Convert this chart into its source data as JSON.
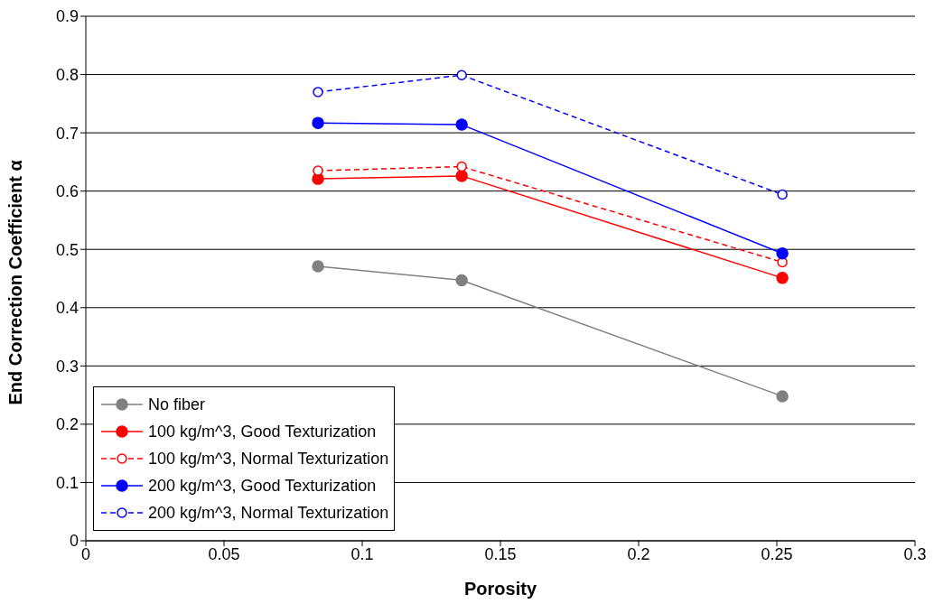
{
  "chart_data": {
    "type": "line",
    "xlabel": "Porosity",
    "ylabel": "End Correction Coefficient α",
    "x": [
      0.084,
      0.136,
      0.252
    ],
    "series": [
      {
        "name": "No fiber",
        "color": "#808080",
        "line_style": "solid",
        "values": [
          0.471,
          0.447,
          0.248
        ]
      },
      {
        "name": "100 kg/m^3, Good Texturization",
        "color": "#ff0000",
        "line_style": "solid",
        "values": [
          0.621,
          0.626,
          0.451
        ]
      },
      {
        "name": "100 kg/m^3, Normal Texturization",
        "color": "#ff0000",
        "line_style": "dashed",
        "values": [
          0.635,
          0.642,
          0.478
        ]
      },
      {
        "name": "200 kg/m^3, Good Texturization",
        "color": "#0000ff",
        "line_style": "solid",
        "values": [
          0.717,
          0.714,
          0.493
        ]
      },
      {
        "name": "200 kg/m^3, Normal Texturization",
        "color": "#0000ff",
        "line_style": "dashed",
        "values": [
          0.77,
          0.799,
          0.594
        ]
      }
    ],
    "xlim": [
      0,
      0.3
    ],
    "xticks": [
      0,
      0.05,
      0.1,
      0.15,
      0.2,
      0.25,
      0.3
    ],
    "ylim": [
      0,
      0.9
    ],
    "yticks": [
      0,
      0.1,
      0.2,
      0.3,
      0.4,
      0.5,
      0.6,
      0.7,
      0.8,
      0.9
    ],
    "grid": "y",
    "legend": "bottom left",
    "marker": "circle"
  }
}
